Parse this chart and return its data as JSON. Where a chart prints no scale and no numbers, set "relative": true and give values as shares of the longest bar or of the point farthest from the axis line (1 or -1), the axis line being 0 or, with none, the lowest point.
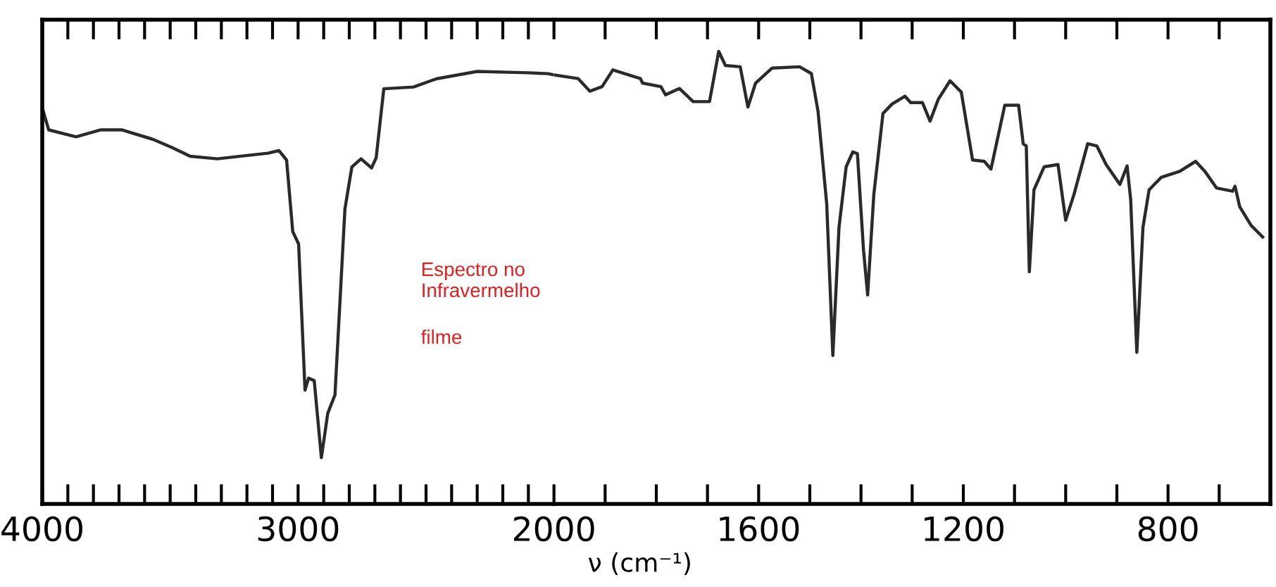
{
  "chart_data": [
    {
      "type": "line",
      "relative": true,
      "annotations": [
        "Espectro no\nInfravermelho",
        "filme"
      ],
      "xlim": [
        4000,
        2000
      ],
      "xticks": [
        4000,
        {
          "value": 3900,
          "label": null
        },
        {
          "value": 3800,
          "label": null
        },
        {
          "value": 3700,
          "label": null
        },
        {
          "value": 3600,
          "label": null
        },
        {
          "value": 3500,
          "label": null
        },
        {
          "value": 3400,
          "label": null
        },
        {
          "value": 3300,
          "label": null
        },
        {
          "value": 3200,
          "label": null
        },
        {
          "value": 3100,
          "label": null
        },
        3000,
        {
          "value": 2900,
          "label": null
        },
        {
          "value": 2800,
          "label": null
        },
        {
          "value": 2700,
          "label": null
        },
        {
          "value": 2600,
          "label": null
        },
        {
          "value": 2500,
          "label": null
        },
        {
          "value": 2400,
          "label": null
        },
        {
          "value": 2300,
          "label": null
        },
        {
          "value": 2200,
          "label": null
        },
        {
          "value": 2100,
          "label": null
        }
      ],
      "tick_labels": "x",
      "line_style": "solid",
      "grid": false,
      "legend": false,
      "marker": "none",
      "series": [
        {
          "color": "#2a2a2a",
          "x": [
            3996,
            3975,
            3868,
            3770,
            3690,
            3567,
            3492,
            3422,
            3316,
            3118,
            3075,
            3045,
            3021,
            2998,
            2973,
            2959,
            2937,
            2909,
            2884,
            2856,
            2817,
            2790,
            2754,
            2713,
            2695,
            2665,
            2549,
            2460,
            2300,
            2104,
            2024,
            2000
          ],
          "values": [
            0.908,
            0.865,
            0.849,
            0.865,
            0.865,
            0.843,
            0.824,
            0.804,
            0.798,
            0.811,
            0.817,
            0.795,
            0.63,
            0.601,
            0.263,
            0.291,
            0.285,
            0.107,
            0.21,
            0.252,
            0.682,
            0.779,
            0.798,
            0.777,
            0.8,
            0.96,
            0.964,
            0.983,
            1.0,
            0.997,
            0.995,
            0.992
          ]
        }
      ]
    },
    {
      "type": "line",
      "relative": true,
      "xlabel": "ν (cm⁻¹)",
      "xlim": [
        2000,
        600
      ],
      "xticks": [
        2000,
        {
          "value": 1900,
          "label": null
        },
        {
          "value": 1800,
          "label": null
        },
        {
          "value": 1700,
          "label": null
        },
        1600,
        {
          "value": 1500,
          "label": null
        },
        {
          "value": 1400,
          "label": null
        },
        {
          "value": 1300,
          "label": null
        },
        1200,
        {
          "value": 1100,
          "label": null
        },
        {
          "value": 1000,
          "label": null
        },
        {
          "value": 900,
          "label": null
        },
        800,
        {
          "value": 700,
          "label": null
        }
      ],
      "tick_labels": "x",
      "line_style": "solid",
      "grid": false,
      "legend": false,
      "marker": "none",
      "series": [
        {
          "color": "#2a2a2a",
          "x": [
            2000,
            1953,
            1930,
            1906,
            1885,
            1831,
            1827,
            1791,
            1782,
            1755,
            1728,
            1696,
            1678,
            1665,
            1636,
            1621,
            1606,
            1574,
            1520,
            1497,
            1484,
            1467,
            1455,
            1443,
            1429,
            1416,
            1407,
            1395,
            1387,
            1375,
            1357,
            1339,
            1314,
            1303,
            1280,
            1265,
            1249,
            1226,
            1204,
            1182,
            1159,
            1146,
            1119,
            1092,
            1083,
            1077,
            1071,
            1062,
            1042,
            1015,
            1000,
            984,
            957,
            939,
            921,
            894,
            880,
            873,
            861,
            849,
            837,
            813,
            777,
            746,
            728,
            705,
            674,
            669,
            660,
            638,
            615
          ],
          "values": [
            0.948,
            0.94,
            0.912,
            0.922,
            0.959,
            0.94,
            0.93,
            0.922,
            0.904,
            0.918,
            0.889,
            0.889,
            1.0,
            0.969,
            0.966,
            0.877,
            0.93,
            0.963,
            0.966,
            0.951,
            0.868,
            0.663,
            0.328,
            0.611,
            0.745,
            0.778,
            0.774,
            0.56,
            0.462,
            0.683,
            0.863,
            0.884,
            0.901,
            0.887,
            0.887,
            0.846,
            0.894,
            0.935,
            0.91,
            0.76,
            0.757,
            0.74,
            0.881,
            0.881,
            0.796,
            0.791,
            0.513,
            0.694,
            0.745,
            0.75,
            0.627,
            0.683,
            0.796,
            0.791,
            0.75,
            0.706,
            0.747,
            0.673,
            0.335,
            0.611,
            0.694,
            0.722,
            0.735,
            0.757,
            0.735,
            0.698,
            0.691,
            0.702,
            0.657,
            0.616,
            0.59
          ]
        }
      ]
    }
  ]
}
